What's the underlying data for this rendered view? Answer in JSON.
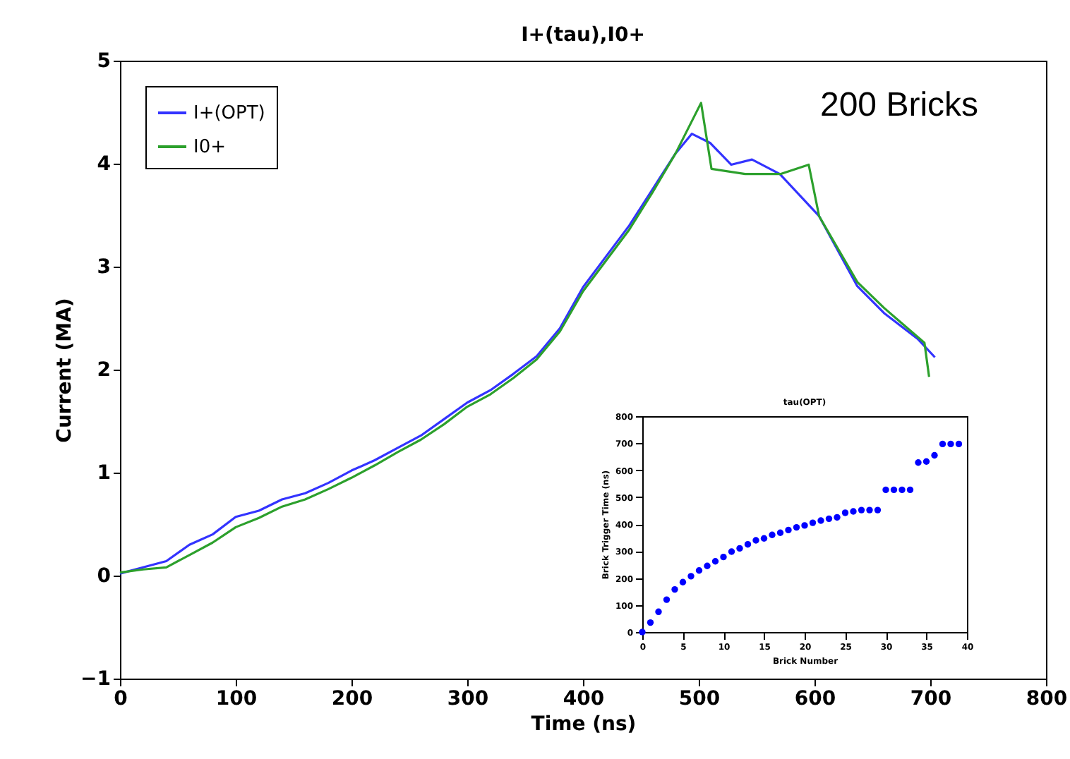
{
  "chart_data": [
    {
      "type": "line",
      "title": "I+(tau),I0+",
      "xlabel": "Time (ns)",
      "ylabel": "Current (MA)",
      "xlim": [
        0,
        800
      ],
      "xticks": [
        0,
        100,
        200,
        300,
        400,
        500,
        600,
        700,
        800
      ],
      "ylim": [
        -1,
        5
      ],
      "yticks": [
        -1,
        0,
        1,
        2,
        3,
        4,
        5
      ],
      "grid": false,
      "legend": "top left",
      "annotations": [
        "200 Bricks"
      ],
      "series": [
        {
          "name": "I+(OPT)",
          "color": "#3333ff",
          "x": [
            0,
            20,
            40,
            60,
            80,
            100,
            120,
            140,
            160,
            180,
            200,
            220,
            240,
            260,
            280,
            300,
            320,
            340,
            360,
            380,
            400,
            420,
            440,
            460,
            480,
            494,
            510,
            528,
            546,
            570,
            604,
            637,
            660,
            689,
            704
          ],
          "values": [
            0.02,
            0.08,
            0.14,
            0.3,
            0.4,
            0.57,
            0.63,
            0.74,
            0.8,
            0.9,
            1.02,
            1.12,
            1.24,
            1.36,
            1.52,
            1.68,
            1.8,
            1.96,
            2.13,
            2.4,
            2.8,
            3.1,
            3.4,
            3.75,
            4.1,
            4.29,
            4.2,
            3.99,
            4.04,
            3.9,
            3.49,
            2.81,
            2.55,
            2.3,
            2.12
          ]
        },
        {
          "name": "I0+",
          "color": "#2ca02c",
          "x": [
            0,
            20,
            40,
            60,
            80,
            100,
            120,
            140,
            160,
            180,
            200,
            220,
            240,
            260,
            280,
            300,
            320,
            340,
            360,
            380,
            400,
            420,
            440,
            460,
            480,
            502,
            511,
            540,
            571,
            595,
            604,
            637,
            660,
            695,
            699
          ],
          "values": [
            0.03,
            0.06,
            0.08,
            0.2,
            0.32,
            0.47,
            0.56,
            0.67,
            0.74,
            0.84,
            0.95,
            1.07,
            1.2,
            1.32,
            1.47,
            1.64,
            1.76,
            1.92,
            2.1,
            2.37,
            2.76,
            3.06,
            3.36,
            3.72,
            4.1,
            4.59,
            3.95,
            3.9,
            3.9,
            3.99,
            3.49,
            2.85,
            2.6,
            2.26,
            1.93
          ]
        }
      ]
    },
    {
      "type": "scatter",
      "title": "tau(OPT)",
      "xlabel": "Brick Number",
      "ylabel": "Brick Trigger Time (ns)",
      "xlim": [
        0,
        40
      ],
      "xticks": [
        0,
        5,
        10,
        15,
        20,
        25,
        30,
        35,
        40
      ],
      "ylim": [
        0,
        800
      ],
      "yticks": [
        0,
        100,
        200,
        300,
        400,
        500,
        600,
        700,
        800
      ],
      "grid": false,
      "marker": "circle",
      "series": [
        {
          "color": "#0000ff",
          "x": [
            0,
            1,
            2,
            3,
            4,
            5,
            6,
            7,
            8,
            9,
            10,
            11,
            12,
            13,
            14,
            15,
            16,
            17,
            18,
            19,
            20,
            21,
            22,
            23,
            24,
            25,
            26,
            27,
            28,
            29,
            30,
            31,
            32,
            33,
            34,
            35,
            36,
            37,
            38,
            39
          ],
          "values": [
            0,
            35,
            75,
            120,
            158,
            185,
            207,
            228,
            245,
            262,
            278,
            298,
            310,
            325,
            340,
            347,
            360,
            368,
            378,
            388,
            395,
            405,
            413,
            420,
            425,
            442,
            447,
            452,
            452,
            452,
            527,
            527,
            527,
            527,
            628,
            632,
            655,
            697,
            697,
            697
          ]
        }
      ]
    }
  ]
}
